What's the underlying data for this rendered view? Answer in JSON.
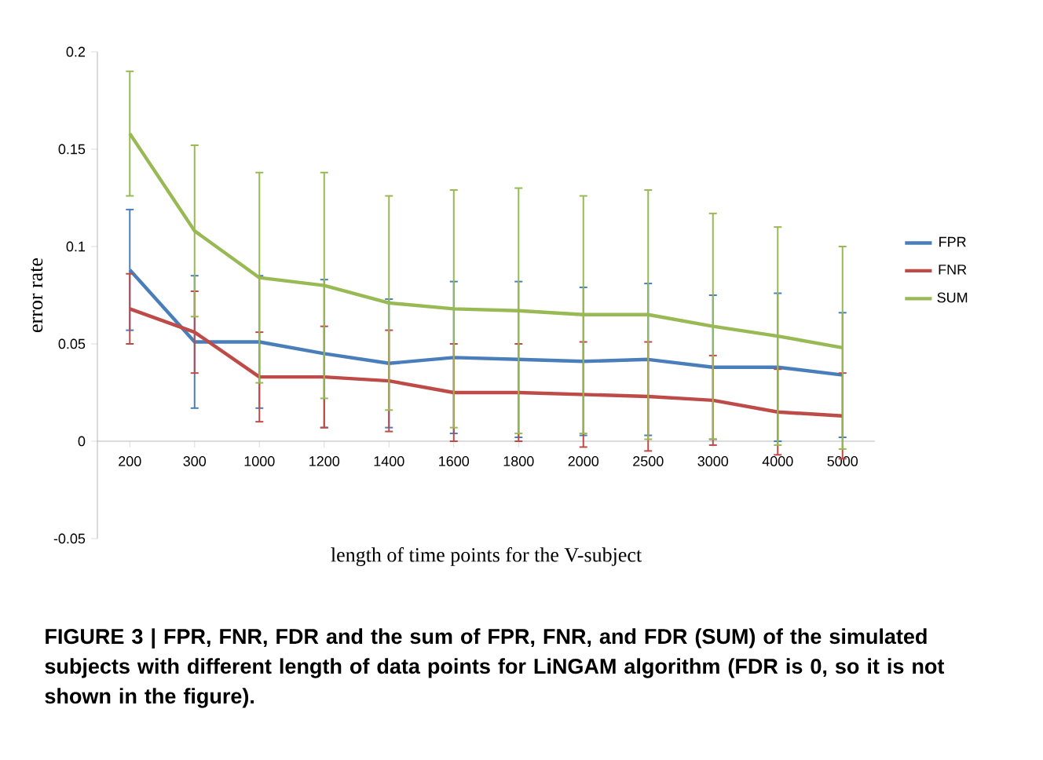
{
  "chart_data": {
    "type": "line",
    "xlabel": "length of time points for the V-subject",
    "ylabel": "error rate",
    "categories": [
      "200",
      "300",
      "1000",
      "1200",
      "1400",
      "1600",
      "1800",
      "2000",
      "2500",
      "3000",
      "4000",
      "5000"
    ],
    "series": [
      {
        "name": "FPR",
        "color": "#4a7ebb",
        "values": [
          0.088,
          0.051,
          0.051,
          0.045,
          0.04,
          0.043,
          0.042,
          0.041,
          0.042,
          0.038,
          0.038,
          0.034
        ],
        "errors": [
          0.031,
          0.034,
          0.034,
          0.038,
          0.033,
          0.039,
          0.04,
          0.038,
          0.039,
          0.037,
          0.038,
          0.032
        ]
      },
      {
        "name": "FNR",
        "color": "#be4b48",
        "values": [
          0.068,
          0.056,
          0.033,
          0.033,
          0.031,
          0.025,
          0.025,
          0.024,
          0.023,
          0.021,
          0.015,
          0.013
        ],
        "errors": [
          0.018,
          0.021,
          0.023,
          0.026,
          0.026,
          0.025,
          0.025,
          0.027,
          0.028,
          0.023,
          0.022,
          0.022
        ]
      },
      {
        "name": "SUM",
        "color": "#98b954",
        "values": [
          0.158,
          0.108,
          0.084,
          0.08,
          0.071,
          0.068,
          0.067,
          0.065,
          0.065,
          0.059,
          0.054,
          0.048
        ],
        "errors": [
          0.032,
          0.044,
          0.054,
          0.058,
          0.055,
          0.061,
          0.063,
          0.061,
          0.064,
          0.058,
          0.056,
          0.052
        ]
      }
    ],
    "ylim": [
      -0.05,
      0.2
    ],
    "yticks": [
      -0.05,
      0,
      0.05,
      0.1,
      0.15,
      0.2
    ],
    "legend": "right",
    "grid": false,
    "annotations": [
      "**FIGURE 3 | FPR, FNR, FDR and the sum of FPR, FNR, and FDR (SUM) of the simulated subjects with different length of data points for LiNGAM algorithm (FDR is 0, so it is not shown in the figure).**"
    ]
  }
}
